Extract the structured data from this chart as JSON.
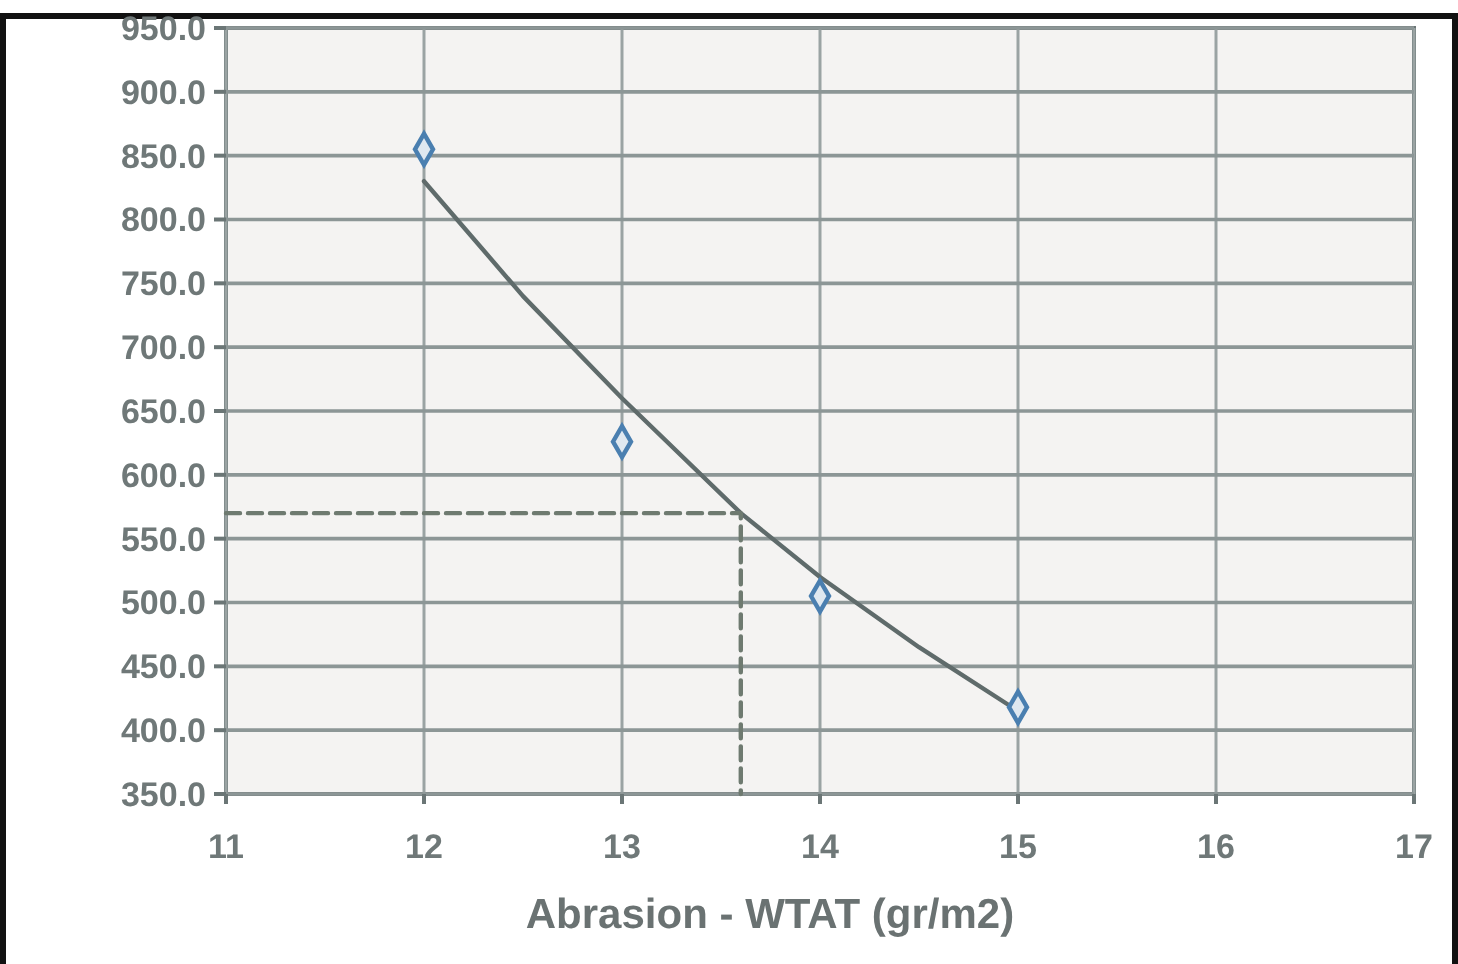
{
  "chart_data": {
    "type": "scatter",
    "xlabel": "Abrasion - WTAT (gr/m2)",
    "xlim": [
      11,
      17
    ],
    "xticks": [
      11,
      12,
      13,
      14,
      15,
      16,
      17
    ],
    "ylim": [
      350,
      950
    ],
    "yticks": [
      {
        "value": 350,
        "label": "350.0"
      },
      {
        "value": 400,
        "label": "400.0"
      },
      {
        "value": 450,
        "label": "450.0"
      },
      {
        "value": 500,
        "label": "500.0"
      },
      {
        "value": 550,
        "label": "550.0"
      },
      {
        "value": 600,
        "label": "600.0"
      },
      {
        "value": 650,
        "label": "650.0"
      },
      {
        "value": 700,
        "label": "700.0"
      },
      {
        "value": 750,
        "label": "750.0"
      },
      {
        "value": 800,
        "label": "800.0"
      },
      {
        "value": 850,
        "label": "850.0"
      },
      {
        "value": 900,
        "label": "900.0"
      },
      {
        "value": 950,
        "label": "950.0"
      }
    ],
    "grid": true,
    "series": [
      {
        "type": "line",
        "color": "#5f6b6b",
        "x": [
          12,
          12.5,
          13,
          13.6,
          14,
          14.5,
          15
        ],
        "values": [
          830,
          740,
          660,
          570,
          520,
          465,
          415
        ],
        "marker": "none",
        "line_style": "solid"
      },
      {
        "type": "line",
        "color": "#6e7a70",
        "x": [
          11,
          13.6,
          13.6
        ],
        "values": [
          570,
          570,
          350
        ],
        "marker": "none",
        "line_style": "dashed"
      },
      {
        "color": "#4a7fb0",
        "x": [
          12,
          13,
          14,
          15
        ],
        "values": [
          855,
          626,
          505,
          418
        ],
        "marker": "diamond"
      }
    ]
  }
}
